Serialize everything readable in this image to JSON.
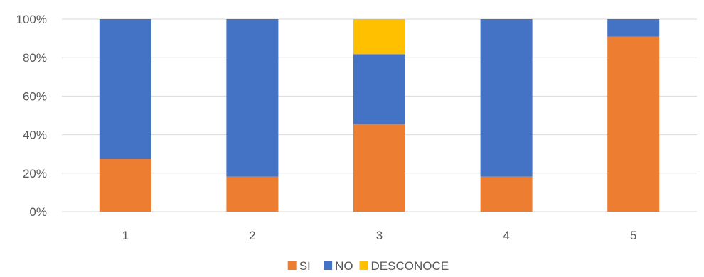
{
  "chart_data": {
    "type": "bar",
    "stacked": true,
    "percent": true,
    "categories": [
      "1",
      "2",
      "3",
      "4",
      "5"
    ],
    "series": [
      {
        "name": "SI",
        "color": "#ED7D31",
        "values": [
          27.3,
          18.2,
          45.5,
          18.2,
          90.9
        ]
      },
      {
        "name": "NO",
        "color": "#4472C4",
        "values": [
          72.7,
          81.8,
          36.3,
          81.8,
          9.1
        ]
      },
      {
        "name": "DESCONOCE",
        "color": "#FFC000",
        "values": [
          0,
          0,
          18.2,
          0,
          0
        ]
      }
    ],
    "y_ticks": [
      "0%",
      "20%",
      "40%",
      "60%",
      "80%",
      "100%"
    ],
    "ylim": [
      0,
      100
    ],
    "title": "",
    "xlabel": "",
    "ylabel": "",
    "grid": true,
    "legend_position": "bottom"
  }
}
